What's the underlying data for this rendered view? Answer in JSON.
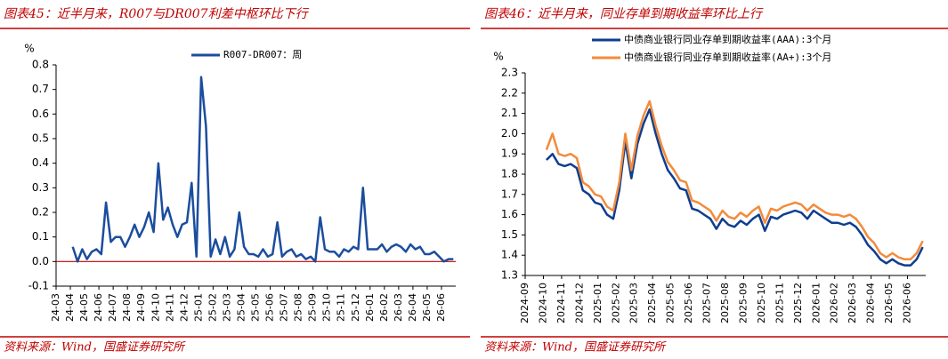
{
  "chart_data": [
    {
      "type": "line",
      "title": "图表45：近半月来，R007与DR007利差中枢环比下行",
      "y_label": "%",
      "source": "资料来源：Wind，国盛证券研究所",
      "categories": [
        "24-03",
        null,
        null,
        "24-04",
        null,
        null,
        "24-05",
        null,
        null,
        "24-06",
        null,
        null,
        "24-07",
        null,
        null,
        "24-08",
        null,
        null,
        "24-09",
        null,
        null,
        "24-10",
        null,
        null,
        "24-11",
        null,
        null,
        "24-12",
        null,
        null,
        "25-01",
        null,
        null,
        "25-02",
        null,
        null,
        "25-03",
        null,
        null,
        "25-04",
        null,
        null,
        "25-05",
        null,
        null,
        "25-06",
        null,
        null,
        "25-07",
        null,
        null,
        "25-08",
        null,
        null,
        "25-09",
        null,
        null,
        "25-10",
        null,
        null,
        "25-11",
        null,
        null,
        "25-12",
        null,
        null,
        "26-01",
        null,
        null,
        "26-02",
        null,
        null,
        "26-03",
        null,
        null,
        "26-04",
        null,
        null,
        "26-05",
        null,
        null,
        "26-06",
        null,
        null
      ],
      "series": [
        {
          "name": "R007-DR007：周",
          "color": "#1b4d9e",
          "values": [
            null,
            null,
            null,
            0.06,
            0.0,
            0.05,
            0.01,
            0.04,
            0.05,
            0.03,
            0.24,
            0.08,
            0.1,
            0.1,
            0.06,
            0.1,
            0.15,
            0.1,
            0.14,
            0.2,
            0.12,
            0.4,
            0.17,
            0.22,
            0.15,
            0.1,
            0.15,
            0.16,
            0.32,
            0.02,
            0.75,
            0.55,
            0.02,
            0.09,
            0.03,
            0.1,
            0.02,
            0.05,
            0.2,
            0.06,
            0.03,
            0.03,
            0.02,
            0.05,
            0.02,
            0.03,
            0.16,
            0.02,
            0.04,
            0.05,
            0.02,
            0.03,
            0.01,
            0.02,
            0.0,
            0.18,
            0.05,
            0.04,
            0.04,
            0.02,
            0.05,
            0.04,
            0.06,
            0.05,
            0.3,
            0.05,
            0.05,
            0.05,
            0.07,
            0.04,
            0.06,
            0.07,
            0.06,
            0.04,
            0.07,
            0.05,
            0.06,
            0.03,
            0.03,
            0.04,
            0.02,
            0.0,
            0.01,
            0.01
          ]
        }
      ],
      "ylim": [
        -0.1,
        0.8
      ],
      "yticks": [
        {
          "value": -0.1,
          "label": "-0.1"
        },
        {
          "value": 0,
          "label": "0.0"
        },
        {
          "value": 0.1,
          "label": "0.1"
        },
        {
          "value": 0.2,
          "label": "0.2"
        },
        {
          "value": 0.3,
          "label": "0.3"
        },
        {
          "value": 0.4,
          "label": "0.4"
        },
        {
          "value": 0.5,
          "label": "0.5"
        },
        {
          "value": 0.6,
          "label": "0.6"
        },
        {
          "value": 0.7,
          "label": "0.7"
        },
        {
          "value": 0.8,
          "label": "0.8"
        }
      ],
      "reference_line": {
        "value": 0,
        "color": "#c00000"
      },
      "legend": "top"
    },
    {
      "type": "line",
      "title": "图表46：近半月来，同业存单到期收益率环比上行",
      "y_label": "%",
      "source": "资料来源：Wind，国盛证券研究所",
      "categories": [
        "2024-09",
        null,
        null,
        "2024-10",
        null,
        null,
        "2024-11",
        null,
        null,
        "2024-12",
        null,
        null,
        "2025-01",
        null,
        null,
        "2025-02",
        null,
        null,
        "2025-03",
        null,
        null,
        "2025-04",
        null,
        null,
        "2025-05",
        null,
        null,
        "2025-06",
        null,
        null,
        "2025-07",
        null,
        null,
        "2025-08",
        null,
        null,
        "2025-09",
        null,
        null,
        "2025-10",
        null,
        null,
        "2025-11",
        null,
        null,
        "2025-12",
        null,
        null,
        "2026-01",
        null,
        null,
        "2026-02",
        null,
        null,
        "2026-03",
        null,
        null,
        "2026-04",
        null,
        null,
        "2026-05",
        null,
        null,
        "2026-06",
        null,
        null
      ],
      "series": [
        {
          "name": "中债商业银行同业存单到期收益率(AAA):3个月",
          "color": "#0f3d8f",
          "values": [
            null,
            null,
            null,
            1.87,
            1.9,
            1.85,
            1.84,
            1.85,
            1.83,
            1.72,
            1.7,
            1.66,
            1.65,
            1.6,
            1.58,
            1.72,
            1.96,
            1.78,
            1.95,
            2.05,
            2.12,
            2.0,
            1.9,
            1.82,
            1.78,
            1.73,
            1.72,
            1.63,
            1.62,
            1.6,
            1.58,
            1.53,
            1.58,
            1.55,
            1.54,
            1.57,
            1.55,
            1.58,
            1.6,
            1.52,
            1.59,
            1.58,
            1.6,
            1.61,
            1.62,
            1.61,
            1.58,
            1.62,
            1.6,
            1.58,
            1.56,
            1.56,
            1.55,
            1.56,
            1.54,
            1.5,
            1.45,
            1.42,
            1.38,
            1.36,
            1.38,
            1.36,
            1.35,
            1.35,
            1.38,
            1.44
          ]
        },
        {
          "name": "中债商业银行同业存单到期收益率(AA+):3个月",
          "color": "#f28b3c",
          "values": [
            null,
            null,
            null,
            1.92,
            2.0,
            1.9,
            1.89,
            1.9,
            1.88,
            1.76,
            1.74,
            1.7,
            1.69,
            1.64,
            1.62,
            1.76,
            2.0,
            1.82,
            1.99,
            2.09,
            2.16,
            2.04,
            1.94,
            1.86,
            1.82,
            1.77,
            1.76,
            1.67,
            1.66,
            1.64,
            1.62,
            1.57,
            1.62,
            1.59,
            1.58,
            1.61,
            1.59,
            1.62,
            1.64,
            1.56,
            1.63,
            1.62,
            1.64,
            1.65,
            1.66,
            1.65,
            1.62,
            1.65,
            1.63,
            1.61,
            1.6,
            1.6,
            1.59,
            1.6,
            1.58,
            1.54,
            1.49,
            1.46,
            1.41,
            1.39,
            1.41,
            1.39,
            1.38,
            1.38,
            1.41,
            1.47
          ]
        }
      ],
      "ylim": [
        1.3,
        2.3
      ],
      "yticks": [
        1.3,
        1.4,
        1.5,
        1.6,
        1.7,
        1.8,
        1.9,
        {
          "value": 2.0,
          "label": "2.0"
        },
        2.1,
        2.2,
        2.3
      ],
      "legend": "top"
    }
  ]
}
